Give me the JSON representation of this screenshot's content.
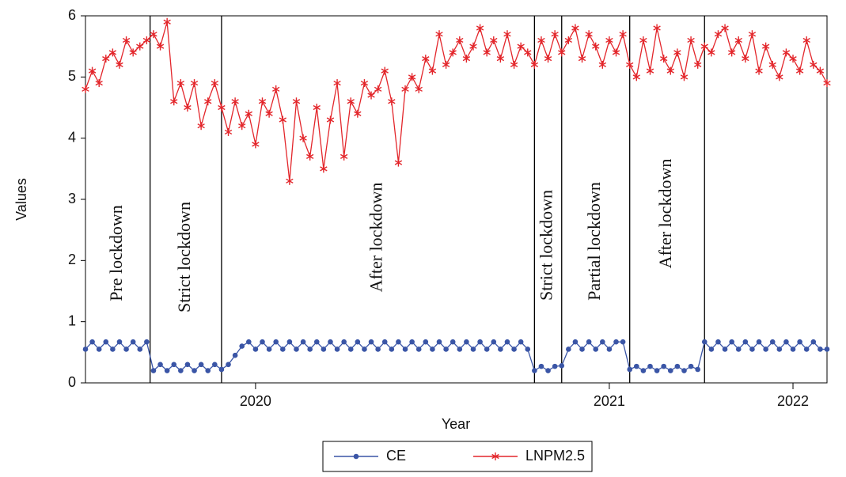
{
  "chart_data": {
    "type": "line",
    "x_label": "Year",
    "y_label": "Values",
    "x": [
      0,
      1,
      2,
      3,
      4,
      5,
      6,
      7,
      8,
      9,
      10,
      11,
      12,
      13,
      14,
      15,
      16,
      17,
      18,
      19,
      20,
      21,
      22,
      23,
      24,
      25,
      26,
      27,
      28,
      29,
      30,
      31,
      32,
      33,
      34,
      35,
      36,
      37,
      38,
      39,
      40,
      41,
      42,
      43,
      44,
      45,
      46,
      47,
      48,
      49,
      50,
      51,
      52,
      53,
      54,
      55,
      56,
      57,
      58,
      59,
      60,
      61,
      62,
      63,
      64,
      65,
      66,
      67,
      68,
      69,
      70,
      71,
      72,
      73,
      74,
      75,
      76,
      77,
      78,
      79,
      80,
      81,
      82,
      83,
      84,
      85,
      86,
      87,
      88,
      89,
      90,
      91,
      92,
      93,
      94,
      95,
      96,
      97,
      98,
      99,
      100,
      101,
      102,
      103,
      104,
      105,
      106,
      107,
      108,
      109
    ],
    "xlim": [
      0,
      109
    ],
    "xticks": [
      {
        "value": 25,
        "label": "2020"
      },
      {
        "value": 77,
        "label": "2021"
      },
      {
        "value": 104,
        "label": "2022"
      }
    ],
    "ylim": [
      0,
      6
    ],
    "yticks": [
      0,
      1,
      2,
      3,
      4,
      5,
      6
    ],
    "period_bounds": [
      9.5,
      20,
      66,
      70,
      80,
      91
    ],
    "annotations": [
      "Pre lockdown",
      "Strict lockdown",
      "After lockdown",
      "Strict lockdown",
      "Partial lockdown",
      "After lockdown"
    ],
    "series": [
      {
        "name": "CE",
        "color": "#3a55a6",
        "marker": "circle",
        "values": [
          0.55,
          0.67,
          0.55,
          0.67,
          0.55,
          0.67,
          0.55,
          0.67,
          0.55,
          0.67,
          0.2,
          0.3,
          0.2,
          0.3,
          0.2,
          0.3,
          0.2,
          0.3,
          0.2,
          0.3,
          0.22,
          0.3,
          0.45,
          0.6,
          0.67,
          0.55,
          0.67,
          0.55,
          0.67,
          0.55,
          0.67,
          0.55,
          0.67,
          0.55,
          0.67,
          0.55,
          0.67,
          0.55,
          0.67,
          0.55,
          0.67,
          0.55,
          0.67,
          0.55,
          0.67,
          0.55,
          0.67,
          0.55,
          0.67,
          0.55,
          0.67,
          0.55,
          0.67,
          0.55,
          0.67,
          0.55,
          0.67,
          0.55,
          0.67,
          0.55,
          0.67,
          0.55,
          0.67,
          0.55,
          0.67,
          0.55,
          0.2,
          0.27,
          0.2,
          0.27,
          0.28,
          0.55,
          0.67,
          0.55,
          0.67,
          0.55,
          0.67,
          0.55,
          0.67,
          0.67,
          0.22,
          0.27,
          0.2,
          0.27,
          0.2,
          0.27,
          0.2,
          0.27,
          0.2,
          0.27,
          0.22,
          0.67,
          0.55,
          0.67,
          0.55,
          0.67,
          0.55,
          0.67,
          0.55,
          0.67,
          0.55,
          0.67,
          0.55,
          0.67,
          0.55,
          0.67,
          0.55,
          0.67,
          0.55,
          0.55
        ]
      },
      {
        "name": "LNPM2.5",
        "color": "#e3262b",
        "marker": "star",
        "values": [
          4.8,
          5.1,
          4.9,
          5.3,
          5.4,
          5.2,
          5.6,
          5.4,
          5.5,
          5.6,
          5.7,
          5.5,
          5.9,
          4.6,
          4.9,
          4.5,
          4.9,
          4.2,
          4.6,
          4.9,
          4.5,
          4.1,
          4.6,
          4.2,
          4.4,
          3.9,
          4.6,
          4.4,
          4.8,
          4.3,
          3.3,
          4.6,
          4.0,
          3.7,
          4.5,
          3.5,
          4.3,
          4.9,
          3.7,
          4.6,
          4.4,
          4.9,
          4.7,
          4.8,
          5.1,
          4.6,
          3.6,
          4.8,
          5.0,
          4.8,
          5.3,
          5.1,
          5.7,
          5.2,
          5.4,
          5.6,
          5.3,
          5.5,
          5.8,
          5.4,
          5.6,
          5.3,
          5.7,
          5.2,
          5.5,
          5.4,
          5.2,
          5.6,
          5.3,
          5.7,
          5.4,
          5.6,
          5.8,
          5.3,
          5.7,
          5.5,
          5.2,
          5.6,
          5.4,
          5.7,
          5.2,
          5.0,
          5.6,
          5.1,
          5.8,
          5.3,
          5.1,
          5.4,
          5.0,
          5.6,
          5.2,
          5.5,
          5.4,
          5.7,
          5.8,
          5.4,
          5.6,
          5.3,
          5.7,
          5.1,
          5.5,
          5.2,
          5.0,
          5.4,
          5.3,
          5.1,
          5.6,
          5.2,
          5.1,
          4.9
        ]
      }
    ]
  }
}
